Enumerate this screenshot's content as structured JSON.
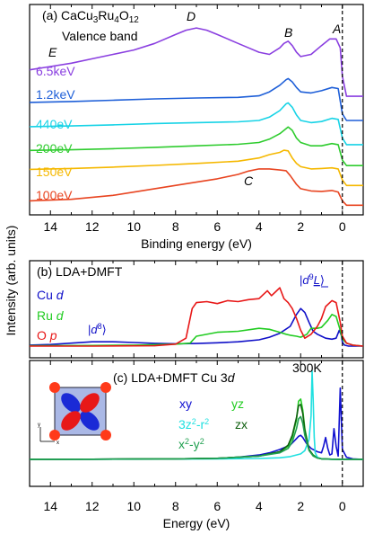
{
  "chart_data": [
    {
      "type": "line",
      "panel_label": "(a) CaCu3Ru4O12",
      "subtitle": "Valence band",
      "xlabel": "Binding energy (eV)",
      "ylabel": "Intensity (arb. units)",
      "xlim": [
        15,
        -1
      ],
      "x_ticks": [
        "14",
        "12",
        "10",
        "8",
        "6",
        "4",
        "2",
        "0"
      ],
      "x_reversed": true,
      "vline_x": 0,
      "feature_labels": [
        "A",
        "B",
        "C",
        "D",
        "E"
      ],
      "series": [
        {
          "name": "6.5keV",
          "color": "#8a3fe0",
          "x": [
            15,
            14,
            13,
            12,
            11,
            10,
            9,
            8,
            7.5,
            7,
            6.5,
            6,
            5.5,
            5,
            4.5,
            4,
            3.5,
            3,
            2.8,
            2.6,
            2.4,
            2.2,
            2,
            1.5,
            1,
            0.6,
            0.3,
            0.1,
            0,
            -0.2,
            -0.5,
            -1
          ],
          "y": [
            6.3,
            6.45,
            6.6,
            6.8,
            7.0,
            7.2,
            7.5,
            7.9,
            8.1,
            8.2,
            8.1,
            7.9,
            7.7,
            7.5,
            7.3,
            7.1,
            7.0,
            7.3,
            7.5,
            7.6,
            7.4,
            7.1,
            6.9,
            7.0,
            7.4,
            7.7,
            7.7,
            7.3,
            6.0,
            5.1,
            5.1,
            5.1
          ]
        },
        {
          "name": "1.2keV",
          "color": "#1e5fd8",
          "x": [
            15,
            13,
            11,
            9,
            7,
            5,
            4,
            3.5,
            3,
            2.7,
            2.6,
            2.4,
            2.2,
            2,
            1.5,
            1,
            0.5,
            0.2,
            0,
            -0.2,
            -0.5,
            -1
          ],
          "y": [
            4.82,
            4.86,
            4.92,
            4.98,
            5.02,
            5.05,
            5.12,
            5.3,
            5.6,
            5.85,
            5.9,
            5.75,
            5.5,
            5.3,
            5.25,
            5.35,
            5.5,
            5.45,
            4.3,
            4.0,
            4.0,
            4.0
          ]
        },
        {
          "name": "440eV",
          "color": "#17d3e6",
          "x": [
            15,
            13,
            11,
            9,
            7,
            5,
            4,
            3.5,
            3,
            2.7,
            2.6,
            2.4,
            2.2,
            2,
            1.5,
            1,
            0.5,
            0.2,
            0,
            -0.2,
            -0.5,
            -1
          ],
          "y": [
            3.72,
            3.75,
            3.8,
            3.86,
            3.9,
            3.94,
            4.0,
            4.15,
            4.45,
            4.75,
            4.8,
            4.6,
            4.25,
            4.0,
            3.9,
            3.95,
            4.1,
            4.05,
            3.2,
            2.9,
            2.9,
            2.9
          ]
        },
        {
          "name": "200eV",
          "color": "#2ecc2e",
          "x": [
            15,
            13,
            11,
            9,
            7,
            5,
            4,
            3.5,
            3,
            2.6,
            2.4,
            2.2,
            2,
            1.5,
            1,
            0.5,
            0.2,
            0,
            -0.2,
            -0.5,
            -1
          ],
          "y": [
            2.64,
            2.67,
            2.72,
            2.78,
            2.85,
            2.92,
            3.0,
            3.15,
            3.4,
            3.7,
            3.55,
            3.2,
            3.0,
            2.85,
            2.85,
            2.95,
            2.9,
            2.2,
            1.95,
            1.95,
            1.95
          ]
        },
        {
          "name": "150eV",
          "color": "#f5b800",
          "x": [
            15,
            13,
            11,
            9,
            7,
            5,
            4,
            3.5,
            3,
            2.8,
            2.6,
            2.4,
            2.2,
            2,
            1.5,
            1,
            0.5,
            0.2,
            0,
            -0.2,
            -0.5,
            -1
          ],
          "y": [
            1.78,
            1.82,
            1.88,
            1.96,
            2.05,
            2.15,
            2.3,
            2.45,
            2.55,
            2.65,
            2.62,
            2.3,
            2.05,
            1.9,
            1.8,
            1.82,
            1.85,
            1.8,
            1.3,
            1.05,
            1.05,
            1.05
          ]
        },
        {
          "name": "100eV",
          "color": "#e84420",
          "x": [
            15,
            13,
            11,
            9,
            7,
            6,
            5,
            4.5,
            4,
            3.5,
            3,
            2.7,
            2.5,
            2.2,
            2,
            1.5,
            1,
            0.5,
            0.2,
            0,
            -0.2,
            -0.5,
            -1
          ],
          "y": [
            0.35,
            0.42,
            0.6,
            0.9,
            1.2,
            1.35,
            1.55,
            1.7,
            1.8,
            1.8,
            1.75,
            1.72,
            1.5,
            1.1,
            0.9,
            0.8,
            0.78,
            0.82,
            0.75,
            0.35,
            0.15,
            0.15,
            0.15
          ]
        }
      ]
    },
    {
      "type": "line",
      "panel_label": "(b) LDA+DMFT",
      "annotations": [
        "|d8⟩",
        "|d9L⟩"
      ],
      "xlim": [
        15,
        -1
      ],
      "x_reversed": true,
      "vline_x": 0,
      "series": [
        {
          "name": "Cu d",
          "color": "#1010c8",
          "x": [
            15,
            14,
            13,
            12,
            11,
            10,
            9,
            8,
            7,
            6,
            5,
            4,
            3.5,
            3,
            2.5,
            2.2,
            2,
            1.8,
            1.6,
            1.4,
            1.2,
            1,
            0.8,
            0.5,
            0.3,
            0.15,
            0.05,
            0,
            -0.1,
            -0.3,
            -1
          ],
          "y": [
            0.05,
            0.08,
            0.15,
            0.22,
            0.22,
            0.18,
            0.14,
            0.12,
            0.13,
            0.17,
            0.22,
            0.32,
            0.45,
            0.65,
            1.0,
            1.6,
            1.9,
            1.7,
            1.2,
            0.75,
            0.6,
            0.5,
            0.4,
            0.35,
            0.4,
            0.8,
            0.55,
            0.2,
            0.05,
            0,
            0
          ]
        },
        {
          "name": "Ru d",
          "color": "#22cc22",
          "x": [
            15,
            12,
            10,
            8,
            7.3,
            7,
            6,
            5,
            4,
            3.5,
            3,
            2.7,
            2.5,
            2.2,
            2,
            1.7,
            1.5,
            1.2,
            1,
            0.7,
            0.5,
            0.3,
            0.1,
            0,
            -0.2,
            -0.5,
            -1
          ],
          "y": [
            0.02,
            0.03,
            0.05,
            0.1,
            0.15,
            0.5,
            0.7,
            0.75,
            0.9,
            0.85,
            0.7,
            0.6,
            0.55,
            0.5,
            0.45,
            0.6,
            0.9,
            0.9,
            0.95,
            1.3,
            1.6,
            1.5,
            0.8,
            0.35,
            0.15,
            0.05,
            0
          ]
        },
        {
          "name": "O p",
          "color": "#e81818",
          "x": [
            15,
            12,
            9,
            8,
            7.5,
            7.2,
            7,
            6.5,
            6,
            5.5,
            5,
            4.5,
            4,
            3.8,
            3.6,
            3.4,
            3.2,
            3,
            2.8,
            2.6,
            2.4,
            2.2,
            2,
            1.8,
            1.5,
            1.2,
            1,
            0.8,
            0.5,
            0.3,
            0.1,
            0,
            -0.2,
            -0.5,
            -1
          ],
          "y": [
            0,
            0,
            0.02,
            0.1,
            0.4,
            1.9,
            2.2,
            2.25,
            2.15,
            2.3,
            2.25,
            2.35,
            2.4,
            2.6,
            2.8,
            2.55,
            2.75,
            2.95,
            2.4,
            2.2,
            1.9,
            1.4,
            0.8,
            0.4,
            0.6,
            1.0,
            1.4,
            2.0,
            2.3,
            2.2,
            1.2,
            0.5,
            0.15,
            0.05,
            0
          ]
        }
      ]
    },
    {
      "type": "line",
      "panel_label": "(c) LDA+DMFT  Cu 3d",
      "annotation": "300K",
      "xlabel": "Energy (eV)",
      "xlim": [
        15,
        -1
      ],
      "x_ticks": [
        "14",
        "12",
        "10",
        "8",
        "6",
        "4",
        "2",
        "0"
      ],
      "x_reversed": true,
      "vline_x": 0,
      "inset_axis_labels": [
        "x",
        "y"
      ],
      "series": [
        {
          "name": "xy",
          "color": "#1010d0",
          "x": [
            15,
            12,
            10,
            8,
            6,
            5,
            4,
            3.5,
            3,
            2.5,
            2.3,
            2.1,
            2,
            1.9,
            1.7,
            1.5,
            1.2,
            1,
            0.9,
            0.8,
            0.7,
            0.6,
            0.5,
            0.4,
            0.3,
            0.2,
            0.1,
            0,
            -0.2,
            -0.5,
            -1
          ],
          "y": [
            0.01,
            0.02,
            0.03,
            0.05,
            0.1,
            0.2,
            0.4,
            0.6,
            0.9,
            1.3,
            1.7,
            2.1,
            2.2,
            2.0,
            1.4,
            1.0,
            0.7,
            0.6,
            1.2,
            2.0,
            1.0,
            0.4,
            0.5,
            2.8,
            1.2,
            0.3,
            6.5,
            0.9,
            0.2,
            0.05,
            0
          ]
        },
        {
          "name": "yz",
          "color": "#22cc22",
          "x": [
            15,
            12,
            10,
            8,
            6,
            5,
            4,
            3,
            2.6,
            2.4,
            2.2,
            2.1,
            2,
            1.9,
            1.8,
            1.6,
            1.4,
            1.2,
            1,
            0.5,
            0,
            -0.5,
            -1
          ],
          "y": [
            0.01,
            0.02,
            0.03,
            0.05,
            0.1,
            0.2,
            0.3,
            0.7,
            1.2,
            2.0,
            3.6,
            5.3,
            5.5,
            4.5,
            2.8,
            0.9,
            0.4,
            0.15,
            0.06,
            0.02,
            0,
            0,
            0
          ]
        },
        {
          "name": "3z²-r²",
          "color": "#20e0e0",
          "x": [
            15,
            10,
            6,
            4,
            3,
            2.5,
            2,
            1.8,
            1.6,
            1.5,
            1.45,
            1.4,
            1.35,
            1.3,
            1.2,
            1,
            0.5,
            0,
            -1
          ],
          "y": [
            0.01,
            0.02,
            0.04,
            0.08,
            0.15,
            0.25,
            0.5,
            0.8,
            1.8,
            4.0,
            8.1,
            5.5,
            2.0,
            0.6,
            0.2,
            0.05,
            0.01,
            0,
            0
          ]
        },
        {
          "name": "zx",
          "color": "#106010",
          "x": [
            15,
            12,
            10,
            8,
            6,
            5,
            4,
            3,
            2.6,
            2.4,
            2.2,
            2.1,
            2,
            1.9,
            1.8,
            1.6,
            1.4,
            1.2,
            1,
            0.5,
            0,
            -0.5,
            -1
          ],
          "y": [
            0.01,
            0.02,
            0.03,
            0.05,
            0.1,
            0.2,
            0.3,
            0.7,
            1.3,
            2.2,
            3.8,
            4.9,
            5.0,
            4.2,
            2.6,
            0.9,
            0.35,
            0.12,
            0.05,
            0.02,
            0,
            0,
            0
          ]
        },
        {
          "name": "x²-y²",
          "color": "#20a050",
          "x": [
            15,
            12,
            10,
            8,
            6,
            5,
            4,
            3,
            2.6,
            2.4,
            2.2,
            2.1,
            2,
            1.9,
            1.8,
            1.6,
            1.4,
            1.2,
            1,
            0.5,
            0,
            -0.5,
            -1
          ],
          "y": [
            0.01,
            0.02,
            0.03,
            0.05,
            0.1,
            0.2,
            0.3,
            0.6,
            1.0,
            1.6,
            2.8,
            3.7,
            3.9,
            3.3,
            2.2,
            0.8,
            0.3,
            0.12,
            0.05,
            0.02,
            0,
            0,
            0
          ]
        }
      ]
    }
  ]
}
